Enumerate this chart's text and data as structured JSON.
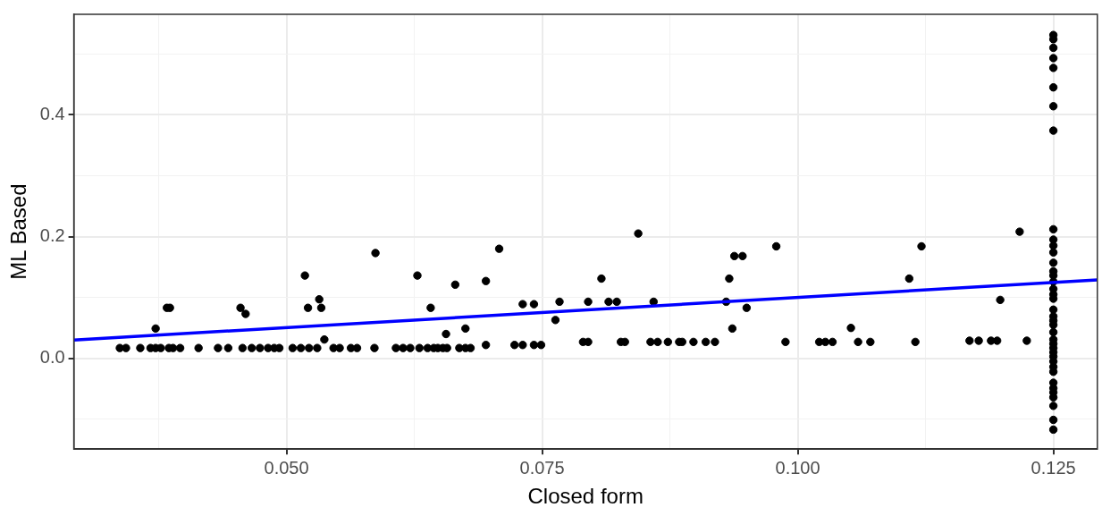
{
  "chart_data": {
    "type": "scatter",
    "xlabel": "Closed form",
    "ylabel": "ML Based",
    "grid": true,
    "legend": false,
    "marker": "circle",
    "xlim": [
      0.0292,
      0.1293
    ],
    "ylim": [
      -0.149,
      0.565
    ],
    "xticks": [
      {
        "value": 0.0375,
        "label": null
      },
      {
        "value": 0.05,
        "label": "0.050"
      },
      {
        "value": 0.0625,
        "label": null
      },
      {
        "value": 0.075,
        "label": "0.075"
      },
      {
        "value": 0.0875,
        "label": null
      },
      {
        "value": 0.1,
        "label": "0.100"
      },
      {
        "value": 0.1125,
        "label": null
      },
      {
        "value": 0.125,
        "label": "0.125"
      }
    ],
    "yticks": [
      {
        "value": -0.1,
        "label": null
      },
      {
        "value": 0,
        "label": "0.0"
      },
      {
        "value": 0.1,
        "label": null
      },
      {
        "value": 0.2,
        "label": "0.2"
      },
      {
        "value": 0.3,
        "label": null
      },
      {
        "value": 0.4,
        "label": "0.4"
      },
      {
        "value": 0.5,
        "label": null
      }
    ],
    "series": [
      {
        "type": "scatter",
        "color": "#000000",
        "x": [
          0.0337,
          0.0343,
          0.0357,
          0.0367,
          0.0372,
          0.0377,
          0.0385,
          0.0389,
          0.0396,
          0.0414,
          0.0433,
          0.0443,
          0.0457,
          0.0466,
          0.0474,
          0.0482,
          0.0488,
          0.0493,
          0.0506,
          0.0514,
          0.0522,
          0.053,
          0.0546,
          0.0552,
          0.0563,
          0.0569,
          0.0586,
          0.0607,
          0.0614,
          0.0621,
          0.063,
          0.0638,
          0.0372,
          0.0383,
          0.0386,
          0.0455,
          0.046,
          0.0518,
          0.0521,
          0.0532,
          0.0534,
          0.0537,
          0.0587,
          0.0628,
          0.0641,
          0.0644,
          0.0648,
          0.0653,
          0.0657,
          0.0656,
          0.0665,
          0.0669,
          0.0675,
          0.068,
          0.0675,
          0.0695,
          0.0695,
          0.0708,
          0.0723,
          0.0731,
          0.0731,
          0.0742,
          0.0742,
          0.0749,
          0.0763,
          0.0767,
          0.079,
          0.0795,
          0.0795,
          0.0808,
          0.0815,
          0.0823,
          0.0827,
          0.0831,
          0.0844,
          0.0856,
          0.0863,
          0.0859,
          0.0873,
          0.0884,
          0.0887,
          0.0898,
          0.091,
          0.0919,
          0.093,
          0.0933,
          0.0936,
          0.0938,
          0.0946,
          0.095,
          0.0979,
          0.0988,
          0.1021,
          0.1027,
          0.1034,
          0.1052,
          0.1059,
          0.1071,
          0.1109,
          0.1115,
          0.1121,
          0.1168,
          0.1177,
          0.1189,
          0.1195,
          0.1198,
          0.1217,
          0.1224,
          0.125,
          0.125,
          0.125,
          0.125,
          0.125,
          0.125,
          0.125,
          0.125,
          0.125,
          0.125,
          0.125,
          0.125,
          0.125,
          0.125,
          0.125,
          0.125,
          0.125,
          0.125,
          0.125,
          0.125,
          0.125,
          0.125,
          0.125,
          0.125,
          0.125,
          0.125,
          0.125,
          0.125,
          0.125,
          0.125,
          0.125,
          0.125,
          0.125,
          0.125,
          0.125,
          0.125,
          0.125,
          0.125,
          0.125
        ],
        "values": [
          0.017,
          0.017,
          0.017,
          0.017,
          0.017,
          0.017,
          0.017,
          0.017,
          0.017,
          0.017,
          0.017,
          0.017,
          0.017,
          0.017,
          0.017,
          0.017,
          0.017,
          0.017,
          0.017,
          0.017,
          0.017,
          0.017,
          0.017,
          0.017,
          0.017,
          0.017,
          0.017,
          0.017,
          0.017,
          0.017,
          0.017,
          0.017,
          0.049,
          0.083,
          0.083,
          0.083,
          0.073,
          0.136,
          0.083,
          0.097,
          0.083,
          0.031,
          0.173,
          0.136,
          0.083,
          0.017,
          0.017,
          0.017,
          0.017,
          0.04,
          0.121,
          0.017,
          0.017,
          0.017,
          0.049,
          0.022,
          0.127,
          0.18,
          0.022,
          0.022,
          0.089,
          0.089,
          0.022,
          0.022,
          0.063,
          0.093,
          0.027,
          0.027,
          0.093,
          0.131,
          0.093,
          0.093,
          0.027,
          0.027,
          0.205,
          0.027,
          0.027,
          0.093,
          0.027,
          0.027,
          0.027,
          0.027,
          0.027,
          0.027,
          0.093,
          0.131,
          0.049,
          0.168,
          0.168,
          0.083,
          0.184,
          0.027,
          0.027,
          0.027,
          0.027,
          0.05,
          0.027,
          0.027,
          0.131,
          0.027,
          0.184,
          0.029,
          0.029,
          0.029,
          0.029,
          0.096,
          0.208,
          0.029,
          0.531,
          0.524,
          0.51,
          0.493,
          0.477,
          0.445,
          0.414,
          0.374,
          0.212,
          0.195,
          0.185,
          0.174,
          0.157,
          0.143,
          0.136,
          0.126,
          0.114,
          0.105,
          0.098,
          0.08,
          0.069,
          0.062,
          0.055,
          0.043,
          0.031,
          0.024,
          0.017,
          0.01,
          0.003,
          -0.005,
          -0.014,
          -0.022,
          -0.04,
          -0.049,
          -0.056,
          -0.064,
          -0.078,
          -0.101,
          -0.117
        ]
      },
      {
        "type": "line",
        "color": "#0000ff",
        "marker": "none",
        "x": [
          0.0292,
          0.1293
        ],
        "values": [
          0.03,
          0.129
        ]
      }
    ]
  }
}
